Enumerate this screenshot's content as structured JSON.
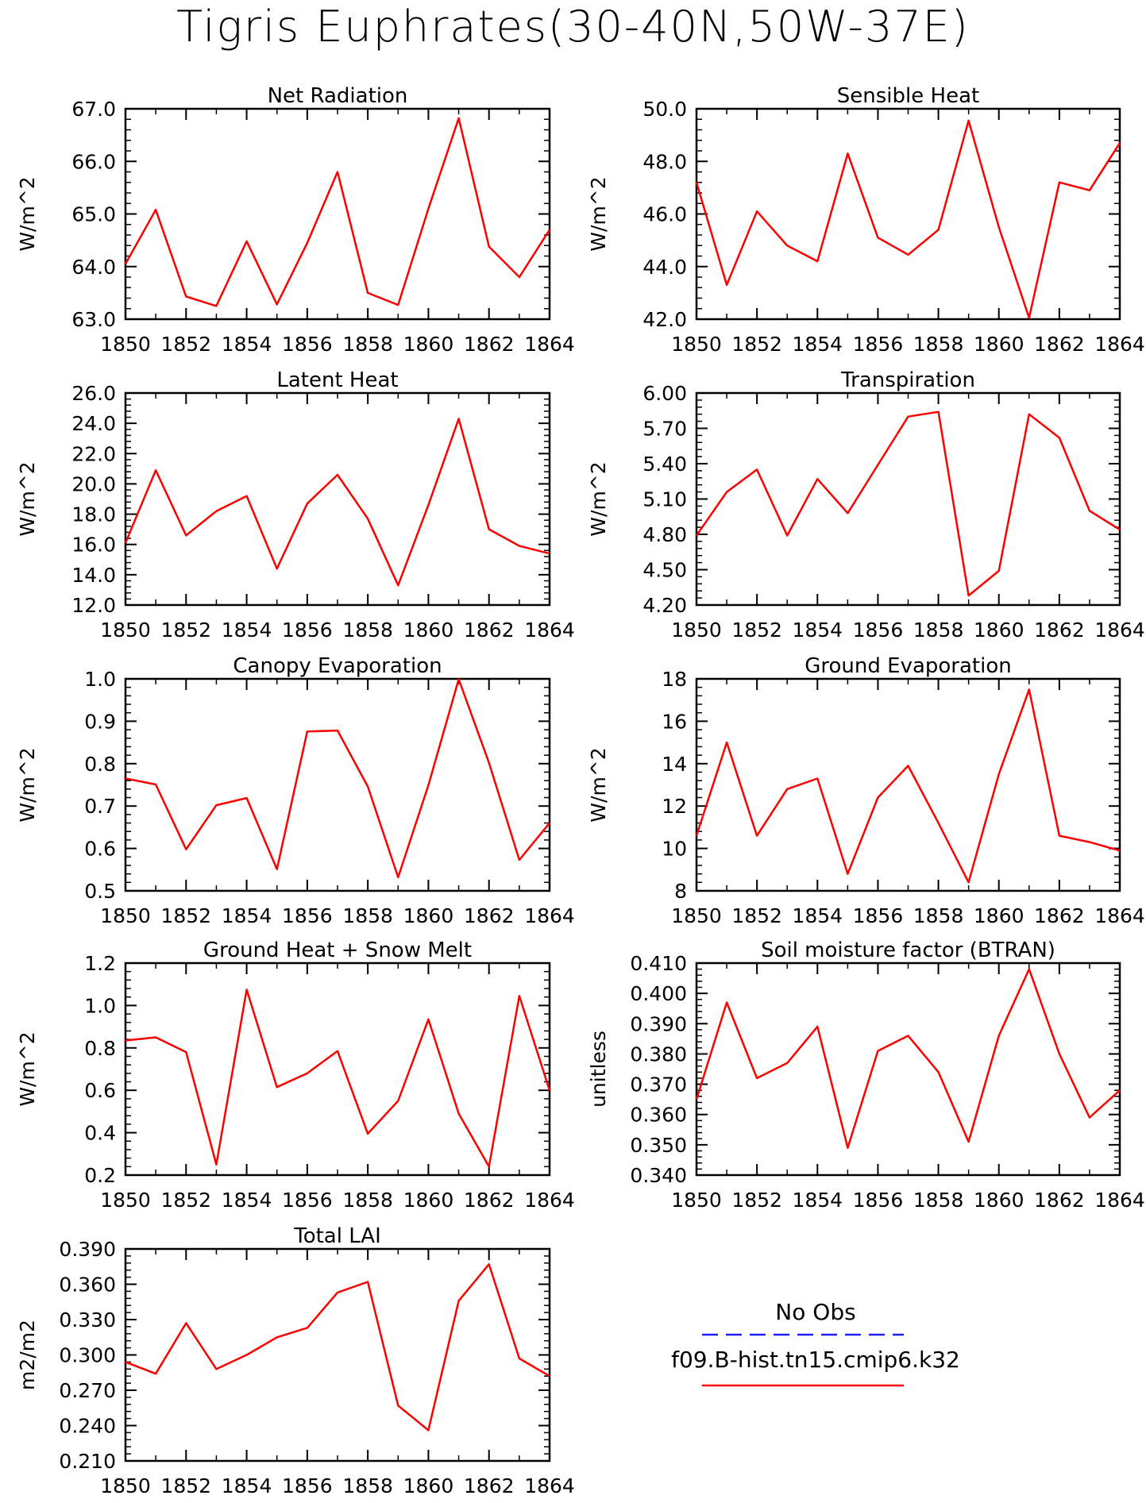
{
  "figure_title": "Tigris Euphrates(30-40N,50W-37E)",
  "legend": {
    "obs_label": "No Obs",
    "obs_color": "#1f1fff",
    "model_label": "f09.B-hist.tn15.cmip6.k32",
    "model_color": "#ff0000"
  },
  "chart_data": [
    {
      "type": "line",
      "title": "Net Radiation",
      "ylabel": "W/m^2",
      "xlabel": "",
      "x": [
        1850,
        1851,
        1852,
        1853,
        1854,
        1855,
        1856,
        1857,
        1858,
        1859,
        1860,
        1861,
        1862,
        1863,
        1864
      ],
      "xlim": [
        1850,
        1864
      ],
      "xticks": [
        "1850",
        "1852",
        "1854",
        "1856",
        "1858",
        "1860",
        "1862",
        "1864"
      ],
      "ylim": [
        63.0,
        67.0
      ],
      "yticks": [
        "63.0",
        "64.0",
        "65.0",
        "66.0",
        "67.0"
      ],
      "series": [
        {
          "values": [
            64.05,
            65.08,
            63.43,
            63.25,
            64.48,
            63.28,
            64.45,
            65.8,
            63.5,
            63.27,
            65.1,
            66.82,
            64.38,
            63.8,
            64.7
          ]
        }
      ]
    },
    {
      "type": "line",
      "title": "Sensible Heat",
      "ylabel": "W/m^2",
      "xlabel": "",
      "x": [
        1850,
        1851,
        1852,
        1853,
        1854,
        1855,
        1856,
        1857,
        1858,
        1859,
        1860,
        1861,
        1862,
        1863,
        1864
      ],
      "xlim": [
        1850,
        1864
      ],
      "xticks": [
        "1850",
        "1852",
        "1854",
        "1856",
        "1858",
        "1860",
        "1862",
        "1864"
      ],
      "ylim": [
        42.0,
        50.0
      ],
      "yticks": [
        "42.0",
        "44.0",
        "46.0",
        "48.0",
        "50.0"
      ],
      "series": [
        {
          "values": [
            47.2,
            43.3,
            46.1,
            44.8,
            44.2,
            48.3,
            45.1,
            44.45,
            45.4,
            49.55,
            45.5,
            42.05,
            47.2,
            46.9,
            48.7
          ]
        }
      ]
    },
    {
      "type": "line",
      "title": "Latent Heat",
      "ylabel": "W/m^2",
      "xlabel": "",
      "x": [
        1850,
        1851,
        1852,
        1853,
        1854,
        1855,
        1856,
        1857,
        1858,
        1859,
        1860,
        1861,
        1862,
        1863,
        1864
      ],
      "xlim": [
        1850,
        1864
      ],
      "xticks": [
        "1850",
        "1852",
        "1854",
        "1856",
        "1858",
        "1860",
        "1862",
        "1864"
      ],
      "ylim": [
        12.0,
        26.0
      ],
      "yticks": [
        "12.0",
        "14.0",
        "16.0",
        "18.0",
        "20.0",
        "22.0",
        "24.0",
        "26.0"
      ],
      "series": [
        {
          "values": [
            16.1,
            20.9,
            16.6,
            18.2,
            19.2,
            14.4,
            18.7,
            20.6,
            17.7,
            13.3,
            18.6,
            24.3,
            17.0,
            15.9,
            15.4
          ]
        }
      ]
    },
    {
      "type": "line",
      "title": "Transpiration",
      "ylabel": "W/m^2",
      "xlabel": "",
      "x": [
        1850,
        1851,
        1852,
        1853,
        1854,
        1855,
        1856,
        1857,
        1858,
        1859,
        1860,
        1861,
        1862,
        1863,
        1864
      ],
      "xlim": [
        1850,
        1864
      ],
      "xticks": [
        "1850",
        "1852",
        "1854",
        "1856",
        "1858",
        "1860",
        "1862",
        "1864"
      ],
      "ylim": [
        4.2,
        6.0
      ],
      "yticks": [
        "4.20",
        "4.50",
        "4.80",
        "5.10",
        "5.40",
        "5.70",
        "6.00"
      ],
      "series": [
        {
          "values": [
            4.79,
            5.16,
            5.35,
            4.79,
            5.27,
            4.98,
            5.39,
            5.8,
            5.84,
            4.28,
            4.49,
            5.82,
            5.62,
            5.0,
            4.84
          ]
        }
      ]
    },
    {
      "type": "line",
      "title": "Canopy Evaporation",
      "ylabel": "W/m^2",
      "xlabel": "",
      "x": [
        1850,
        1851,
        1852,
        1853,
        1854,
        1855,
        1856,
        1857,
        1858,
        1859,
        1860,
        1861,
        1862,
        1863,
        1864
      ],
      "xlim": [
        1850,
        1864
      ],
      "xticks": [
        "1850",
        "1852",
        "1854",
        "1856",
        "1858",
        "1860",
        "1862",
        "1864"
      ],
      "ylim": [
        0.5,
        1.0
      ],
      "yticks": [
        "0.5",
        "0.6",
        "0.7",
        "0.8",
        "0.9",
        "1.0"
      ],
      "series": [
        {
          "values": [
            0.765,
            0.751,
            0.598,
            0.702,
            0.719,
            0.551,
            0.876,
            0.878,
            0.746,
            0.532,
            0.749,
            0.999,
            0.802,
            0.573,
            0.66
          ]
        }
      ]
    },
    {
      "type": "line",
      "title": "Ground Evaporation",
      "ylabel": "W/m^2",
      "xlabel": "",
      "x": [
        1850,
        1851,
        1852,
        1853,
        1854,
        1855,
        1856,
        1857,
        1858,
        1859,
        1860,
        1861,
        1862,
        1863,
        1864
      ],
      "xlim": [
        1850,
        1864
      ],
      "xticks": [
        "1850",
        "1852",
        "1854",
        "1856",
        "1858",
        "1860",
        "1862",
        "1864"
      ],
      "ylim": [
        8,
        18
      ],
      "yticks": [
        "8",
        "10",
        "12",
        "14",
        "16",
        "18"
      ],
      "series": [
        {
          "values": [
            10.6,
            15.0,
            10.6,
            12.8,
            13.3,
            8.8,
            12.4,
            13.9,
            11.2,
            8.4,
            13.5,
            17.5,
            10.6,
            10.3,
            9.9
          ]
        }
      ]
    },
    {
      "type": "line",
      "title": "Ground Heat + Snow Melt",
      "ylabel": "W/m^2",
      "xlabel": "",
      "x": [
        1850,
        1851,
        1852,
        1853,
        1854,
        1855,
        1856,
        1857,
        1858,
        1859,
        1860,
        1861,
        1862,
        1863,
        1864
      ],
      "xlim": [
        1850,
        1864
      ],
      "xticks": [
        "1850",
        "1852",
        "1854",
        "1856",
        "1858",
        "1860",
        "1862",
        "1864"
      ],
      "ylim": [
        0.2,
        1.2
      ],
      "yticks": [
        "0.2",
        "0.4",
        "0.6",
        "0.8",
        "1.0",
        "1.2"
      ],
      "series": [
        {
          "values": [
            0.835,
            0.85,
            0.78,
            0.25,
            1.075,
            0.615,
            0.68,
            0.785,
            0.395,
            0.55,
            0.935,
            0.49,
            0.24,
            1.045,
            0.6
          ]
        }
      ]
    },
    {
      "type": "line",
      "title": "Soil moisture factor (BTRAN)",
      "ylabel": "unitless",
      "xlabel": "",
      "x": [
        1850,
        1851,
        1852,
        1853,
        1854,
        1855,
        1856,
        1857,
        1858,
        1859,
        1860,
        1861,
        1862,
        1863,
        1864
      ],
      "xlim": [
        1850,
        1864
      ],
      "xticks": [
        "1850",
        "1852",
        "1854",
        "1856",
        "1858",
        "1860",
        "1862",
        "1864"
      ],
      "ylim": [
        0.34,
        0.41
      ],
      "yticks": [
        "0.340",
        "0.350",
        "0.360",
        "0.370",
        "0.380",
        "0.390",
        "0.400",
        "0.410"
      ],
      "series": [
        {
          "values": [
            0.365,
            0.397,
            0.372,
            0.377,
            0.389,
            0.349,
            0.381,
            0.386,
            0.374,
            0.351,
            0.386,
            0.408,
            0.38,
            0.359,
            0.368
          ]
        }
      ]
    },
    {
      "type": "line",
      "title": "Total LAI",
      "ylabel": "m2/m2",
      "xlabel": "",
      "x": [
        1850,
        1851,
        1852,
        1853,
        1854,
        1855,
        1856,
        1857,
        1858,
        1859,
        1860,
        1861,
        1862,
        1863,
        1864
      ],
      "xlim": [
        1850,
        1864
      ],
      "xticks": [
        "1850",
        "1852",
        "1854",
        "1856",
        "1858",
        "1860",
        "1862",
        "1864"
      ],
      "ylim": [
        0.21,
        0.39
      ],
      "yticks": [
        "0.210",
        "0.240",
        "0.270",
        "0.300",
        "0.330",
        "0.360",
        "0.390"
      ],
      "series": [
        {
          "values": [
            0.294,
            0.284,
            0.327,
            0.288,
            0.3,
            0.315,
            0.323,
            0.353,
            0.362,
            0.257,
            0.236,
            0.346,
            0.377,
            0.297,
            0.282
          ]
        }
      ]
    }
  ]
}
